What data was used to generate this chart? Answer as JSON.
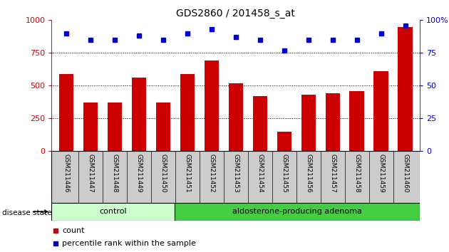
{
  "title": "GDS2860 / 201458_s_at",
  "samples": [
    "GSM211446",
    "GSM211447",
    "GSM211448",
    "GSM211449",
    "GSM211450",
    "GSM211451",
    "GSM211452",
    "GSM211453",
    "GSM211454",
    "GSM211455",
    "GSM211456",
    "GSM211457",
    "GSM211458",
    "GSM211459",
    "GSM211460"
  ],
  "counts": [
    590,
    370,
    370,
    560,
    370,
    590,
    690,
    520,
    420,
    150,
    430,
    440,
    460,
    610,
    950
  ],
  "percentiles": [
    90,
    85,
    85,
    88,
    85,
    90,
    93,
    87,
    85,
    77,
    85,
    85,
    85,
    90,
    96
  ],
  "control_count": 5,
  "adenoma_count": 10,
  "ylim_left": [
    0,
    1000
  ],
  "ylim_right": [
    0,
    100
  ],
  "yticks_left": [
    0,
    250,
    500,
    750,
    1000
  ],
  "yticks_right": [
    0,
    25,
    50,
    75,
    100
  ],
  "ytick_right_labels": [
    "0",
    "25",
    "50",
    "75",
    "100%"
  ],
  "bar_color": "#cc0000",
  "dot_color": "#0000cc",
  "control_color": "#ccffcc",
  "adenoma_color": "#44cc44",
  "label_bg_color": "#cccccc",
  "grid_color": "#000000",
  "legend_count_label": "count",
  "legend_pct_label": "percentile rank within the sample",
  "disease_state_label": "disease state",
  "control_label": "control",
  "adenoma_label": "aldosterone-producing adenoma",
  "bg_color": "#ffffff"
}
